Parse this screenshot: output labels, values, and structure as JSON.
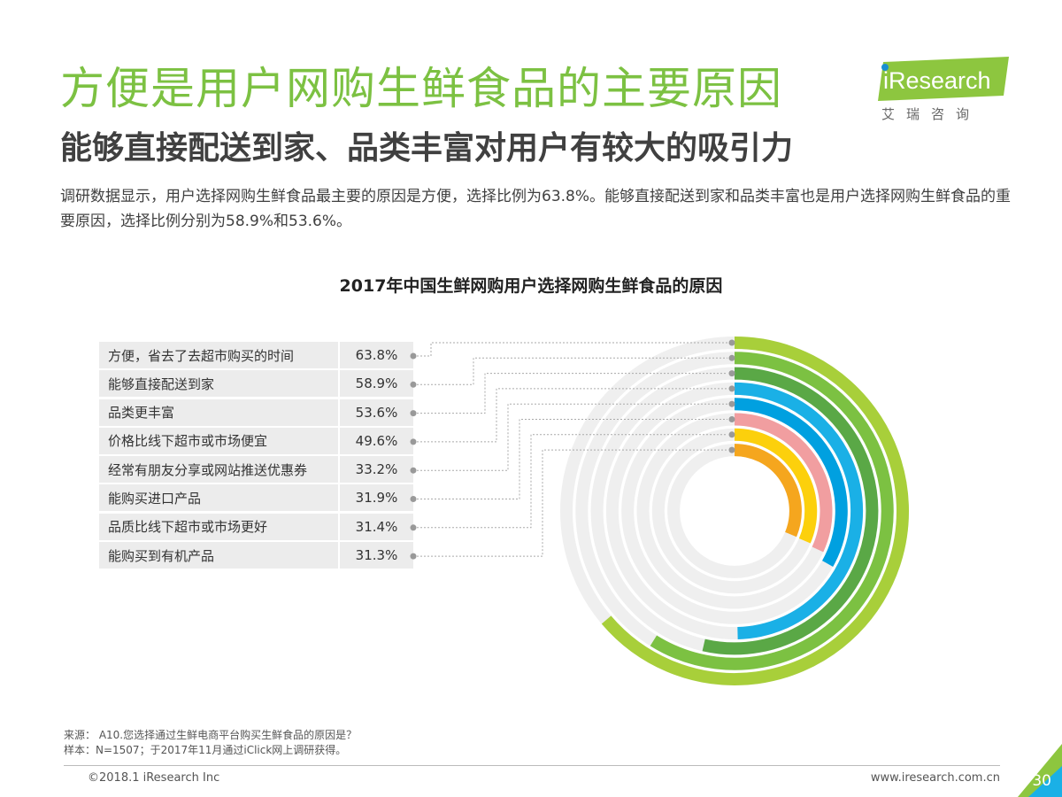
{
  "header": {
    "title": "方便是用户网购生鲜食品的主要原因",
    "subtitle": "能够直接配送到家、品类丰富对用户有较大的吸引力",
    "description": "调研数据显示，用户选择网购生鲜食品最主要的原因是方便，选择比例为63.8%。能够直接配送到家和品类丰富也是用户选择网购生鲜食品的重要原因，选择比例分别为58.9%和53.6%。"
  },
  "logo": {
    "brand": "iResearch",
    "sub": "艾瑞咨询",
    "accent": "#8dc63f"
  },
  "chart_data": {
    "type": "radial-bar",
    "title": "2017年中国生鲜网购用户选择网购生鲜食品的原因",
    "unit": "%",
    "categories": [
      "方便，省去了去超市购买的时间",
      "能够直接配送到家",
      "品类更丰富",
      "价格比线下超市或市场便宜",
      "经常有朋友分享或网站推送优惠券",
      "能购买进口产品",
      "品质比线下超市或市场更好",
      "能购买到有机产品"
    ],
    "values": [
      63.8,
      58.9,
      53.6,
      49.6,
      33.2,
      31.9,
      31.4,
      31.3
    ],
    "value_labels": [
      "63.8%",
      "58.9%",
      "53.6%",
      "49.6%",
      "33.2%",
      "31.9%",
      "31.4%",
      "31.3%"
    ],
    "colors": [
      "#a8cf3a",
      "#7cc142",
      "#5aa846",
      "#1ab0e6",
      "#00a0e0",
      "#f19ea0",
      "#fcd00c",
      "#f5a61e"
    ],
    "track_color": "#efefef"
  },
  "footer": {
    "source_line1": "来源： A10.您选择通过生鲜电商平台购买生鲜食品的原因是？",
    "source_line2": "样本：N=1507；于2017年11月通过iClick网上调研获得。",
    "copyright": "©2018.1 iResearch Inc",
    "website": "www.iresearch.com.cn",
    "page": "30"
  }
}
